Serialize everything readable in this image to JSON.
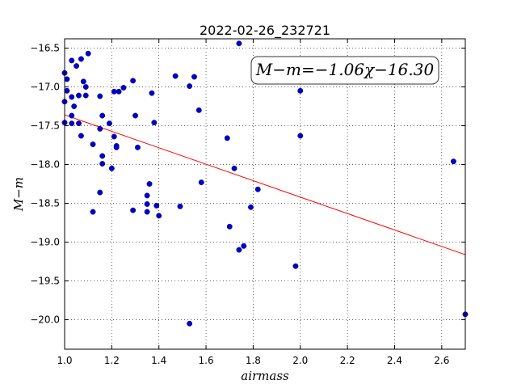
{
  "chart_data": {
    "type": "scatter",
    "title": "2022-02-26_232721",
    "xlabel": "airmass",
    "ylabel": "M−m",
    "xlim": [
      1.0,
      2.7
    ],
    "ylim": [
      -20.38,
      -16.38
    ],
    "xticks": [
      1.0,
      1.2,
      1.4,
      1.6,
      1.8,
      2.0,
      2.2,
      2.4,
      2.6
    ],
    "xtick_labels": [
      "1.0",
      "1.2",
      "1.4",
      "1.6",
      "1.8",
      "2.0",
      "2.2",
      "2.4",
      "2.6"
    ],
    "yticks": [
      -16.5,
      -17.0,
      -17.5,
      -18.0,
      -18.5,
      -19.0,
      -19.5,
      -20.0
    ],
    "ytick_labels": [
      "−16.5",
      "−17.0",
      "−17.5",
      "−18.0",
      "−18.5",
      "−19.0",
      "−19.5",
      "−20.0"
    ],
    "grid": true,
    "annotation": "M−m=−1.06χ−16.30",
    "annotation_position": "top-right",
    "fit": {
      "slope": -1.06,
      "intercept": -16.3,
      "color": "#ff0000"
    },
    "point_color": "#0000cc",
    "points": [
      [
        1.0,
        -16.82
      ],
      [
        1.01,
        -16.9
      ],
      [
        1.01,
        -17.05
      ],
      [
        1.0,
        -17.19
      ],
      [
        1.0,
        -17.46
      ],
      [
        1.03,
        -16.66
      ],
      [
        1.05,
        -16.73
      ],
      [
        1.07,
        -16.64
      ],
      [
        1.1,
        -16.57
      ],
      [
        1.08,
        -16.93
      ],
      [
        1.09,
        -17.0
      ],
      [
        1.06,
        -17.11
      ],
      [
        1.09,
        -17.11
      ],
      [
        1.03,
        -17.13
      ],
      [
        1.04,
        -17.25
      ],
      [
        1.03,
        -17.37
      ],
      [
        1.03,
        -17.47
      ],
      [
        1.06,
        -17.47
      ],
      [
        1.07,
        -17.63
      ],
      [
        1.12,
        -17.74
      ],
      [
        1.15,
        -17.12
      ],
      [
        1.16,
        -17.37
      ],
      [
        1.15,
        -17.54
      ],
      [
        1.19,
        -17.47
      ],
      [
        1.21,
        -17.06
      ],
      [
        1.23,
        -17.06
      ],
      [
        1.25,
        -17.01
      ],
      [
        1.29,
        -16.92
      ],
      [
        1.21,
        -17.64
      ],
      [
        1.22,
        -17.76
      ],
      [
        1.22,
        -17.78
      ],
      [
        1.16,
        -17.89
      ],
      [
        1.16,
        -17.99
      ],
      [
        1.2,
        -18.05
      ],
      [
        1.15,
        -18.36
      ],
      [
        1.12,
        -18.61
      ],
      [
        1.3,
        -17.37
      ],
      [
        1.31,
        -17.78
      ],
      [
        1.37,
        -17.08
      ],
      [
        1.38,
        -17.46
      ],
      [
        1.36,
        -18.25
      ],
      [
        1.35,
        -18.4
      ],
      [
        1.35,
        -18.51
      ],
      [
        1.35,
        -18.61
      ],
      [
        1.29,
        -18.59
      ],
      [
        1.39,
        -18.53
      ],
      [
        1.4,
        -18.66
      ],
      [
        1.47,
        -16.86
      ],
      [
        1.53,
        -16.99
      ],
      [
        1.55,
        -16.87
      ],
      [
        1.57,
        -17.3
      ],
      [
        1.58,
        -18.23
      ],
      [
        1.49,
        -18.54
      ],
      [
        1.53,
        -20.05
      ],
      [
        1.69,
        -17.66
      ],
      [
        1.72,
        -18.05
      ],
      [
        1.74,
        -16.44
      ],
      [
        1.82,
        -18.32
      ],
      [
        1.79,
        -18.55
      ],
      [
        1.7,
        -18.8
      ],
      [
        1.76,
        -19.05
      ],
      [
        1.74,
        -19.1
      ],
      [
        1.98,
        -19.31
      ],
      [
        2.0,
        -17.05
      ],
      [
        2.0,
        -17.63
      ],
      [
        2.65,
        -17.96
      ],
      [
        2.7,
        -19.93
      ]
    ]
  }
}
